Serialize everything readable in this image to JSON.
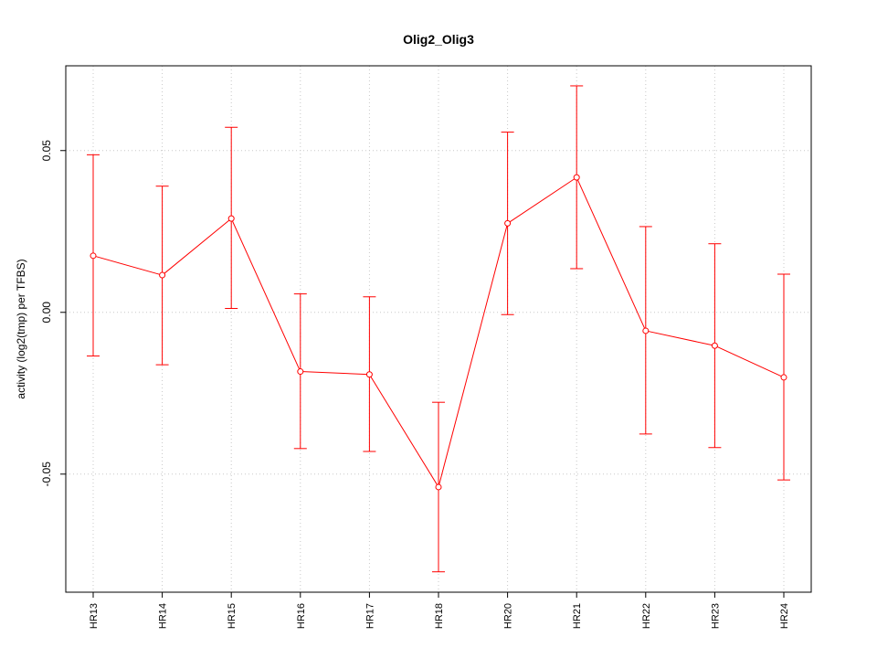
{
  "chart_data": {
    "type": "line",
    "title": "Olig2_Olig3",
    "xlabel": "",
    "ylabel": "activity (log2(tmp) per TFBS)",
    "categories": [
      "HR13",
      "HR14",
      "HR15",
      "HR16",
      "HR17",
      "HR18",
      "HR20",
      "HR21",
      "HR22",
      "HR23",
      "HR24"
    ],
    "series": [
      {
        "values": [
          0.0175,
          0.0115,
          0.029,
          -0.0183,
          -0.0192,
          -0.054,
          0.0275,
          0.0417,
          -0.0057,
          -0.0103,
          -0.0201
        ],
        "error_lower": [
          -0.0135,
          -0.0162,
          0.0012,
          -0.0421,
          -0.043,
          -0.0802,
          -0.0007,
          0.0135,
          -0.0376,
          -0.0418,
          -0.0518
        ],
        "error_upper": [
          0.0487,
          0.039,
          0.0572,
          0.0057,
          0.0048,
          -0.0278,
          0.0557,
          0.07,
          0.0265,
          0.0212,
          0.0118
        ]
      }
    ],
    "ylim": [
      -0.0865,
      0.0762
    ],
    "yticks": [
      -0.05,
      0.0,
      0.05
    ],
    "ytick_labels": [
      "-0.05",
      "0.00",
      "0.05"
    ],
    "grid": true,
    "colors": {
      "series": "#ff0000",
      "grid": "#c8c8c8",
      "axis": "#000000"
    }
  }
}
